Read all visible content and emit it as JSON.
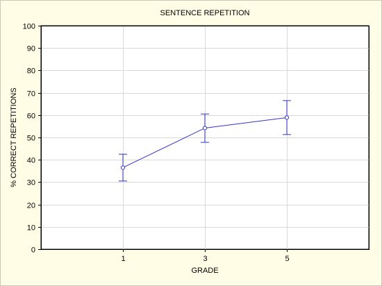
{
  "chart_data": {
    "type": "line",
    "title": "SENTENCE REPETITION",
    "xlabel": "GRADE",
    "ylabel": "% CORRECT REPETITIONS",
    "categories": [
      "1",
      "3",
      "5"
    ],
    "series": [
      {
        "values": [
          36.5,
          54.2,
          58.9
        ],
        "error_low": [
          30.5,
          47.8,
          51.3
        ],
        "error_high": [
          42.5,
          60.5,
          66.5
        ]
      }
    ],
    "ylim": [
      0,
      100
    ],
    "yticks": [
      0,
      10,
      20,
      30,
      40,
      50,
      60,
      70,
      80,
      90,
      100
    ],
    "grid": true,
    "legend": "none",
    "colors": {
      "series": "#3333cc",
      "grid": "#d9d9d9",
      "plot_bg": "#ffffff",
      "outer_bg": "#fffde6"
    }
  }
}
